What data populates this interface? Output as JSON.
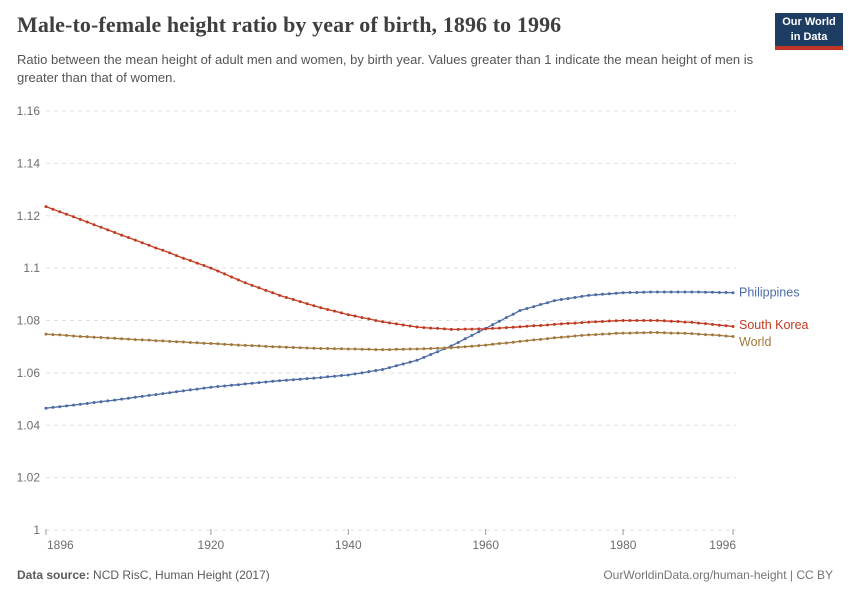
{
  "header": {
    "title": "Male-to-female height ratio by year of birth, 1896 to 1996",
    "subtitle": "Ratio between the mean height of adult men and women, by birth year. Values greater than 1 indicate the mean height of men is greater than that of women.",
    "logo": {
      "line1": "Our World",
      "line2": "in Data",
      "bg_color": "#1d3d63",
      "bar_color": "#c23626"
    }
  },
  "footer": {
    "source_label": "Data source:",
    "source_value": " NCD RisC, Human Height (2017)",
    "link_text": "OurWorldinData.org/human-height | CC BY"
  },
  "chart_data": {
    "type": "line",
    "title": "Male-to-female height ratio by year of birth, 1896 to 1996",
    "xlabel": "",
    "ylabel": "",
    "xlim": [
      1896,
      1996
    ],
    "ylim": [
      1.0,
      1.16
    ],
    "grid": "horizontal-dashed",
    "grid_color": "#e0e0e0",
    "tick_label_color": "#6e6e6e",
    "tick_mark_color": "#999999",
    "legend_position": "right-end-labels",
    "xticks": [
      1896,
      1920,
      1940,
      1960,
      1980,
      1996
    ],
    "yticks": [
      1.0,
      1.02,
      1.04,
      1.06,
      1.08,
      1.1,
      1.12,
      1.14,
      1.16
    ],
    "ytick_labels": [
      "1",
      "1.02",
      "1.04",
      "1.06",
      "1.08",
      "1.1",
      "1.12",
      "1.14",
      "1.16"
    ],
    "x": [
      1896,
      1897,
      1898,
      1899,
      1900,
      1901,
      1902,
      1903,
      1904,
      1905,
      1906,
      1907,
      1908,
      1909,
      1910,
      1911,
      1912,
      1913,
      1914,
      1915,
      1916,
      1917,
      1918,
      1919,
      1920,
      1921,
      1922,
      1923,
      1924,
      1925,
      1926,
      1927,
      1928,
      1929,
      1930,
      1931,
      1932,
      1933,
      1934,
      1935,
      1936,
      1937,
      1938,
      1939,
      1940,
      1941,
      1942,
      1943,
      1944,
      1945,
      1946,
      1947,
      1948,
      1949,
      1950,
      1951,
      1952,
      1953,
      1954,
      1955,
      1956,
      1957,
      1958,
      1959,
      1960,
      1961,
      1962,
      1963,
      1964,
      1965,
      1966,
      1967,
      1968,
      1969,
      1970,
      1971,
      1972,
      1973,
      1974,
      1975,
      1976,
      1977,
      1978,
      1979,
      1980,
      1981,
      1982,
      1983,
      1984,
      1985,
      1986,
      1987,
      1988,
      1989,
      1990,
      1991,
      1992,
      1993,
      1994,
      1995,
      1996
    ],
    "series": [
      {
        "name": "Philippines",
        "color": "#4c6ca4",
        "label_dy": 4,
        "values": [
          1.0465,
          1.0468,
          1.0471,
          1.0474,
          1.0477,
          1.048,
          1.0483,
          1.0487,
          1.049,
          1.0493,
          1.0496,
          1.05,
          1.0503,
          1.0507,
          1.051,
          1.0514,
          1.0517,
          1.0521,
          1.0524,
          1.0528,
          1.0531,
          1.0535,
          1.0538,
          1.0542,
          1.0545,
          1.0548,
          1.055,
          1.0553,
          1.0555,
          1.0558,
          1.056,
          1.0563,
          1.0565,
          1.0568,
          1.057,
          1.0572,
          1.0574,
          1.0576,
          1.0578,
          1.058,
          1.0582,
          1.0585,
          1.0587,
          1.059,
          1.0592,
          1.0596,
          1.06,
          1.0605,
          1.0609,
          1.0613,
          1.062,
          1.0627,
          1.0634,
          1.0641,
          1.0648,
          1.0659,
          1.067,
          1.0681,
          1.0692,
          1.0703,
          1.0716,
          1.073,
          1.0743,
          1.0757,
          1.077,
          1.0784,
          1.0797,
          1.0811,
          1.0824,
          1.0838,
          1.0846,
          1.0853,
          1.0861,
          1.0868,
          1.0876,
          1.088,
          1.0884,
          1.0888,
          1.0892,
          1.0896,
          1.0898,
          1.09,
          1.0902,
          1.0904,
          1.0906,
          1.0907,
          1.0907,
          1.0908,
          1.0909,
          1.0909,
          1.0909,
          1.0909,
          1.0909,
          1.0909,
          1.0909,
          1.0909,
          1.0908,
          1.0908,
          1.0907,
          1.0907,
          1.0906
        ]
      },
      {
        "name": "South Korea",
        "color": "#c13b22",
        "label_dy": 2.5,
        "values": [
          1.1235,
          1.1225,
          1.1215,
          1.1206,
          1.1196,
          1.1186,
          1.1176,
          1.1166,
          1.1156,
          1.1146,
          1.1136,
          1.1126,
          1.1117,
          1.1107,
          1.1097,
          1.1087,
          1.1077,
          1.1068,
          1.1058,
          1.1048,
          1.1038,
          1.1029,
          1.1019,
          1.101,
          1.1,
          1.0989,
          1.0978,
          1.0966,
          1.0955,
          1.0944,
          1.0934,
          1.0925,
          1.0915,
          1.0906,
          1.0896,
          1.0888,
          1.088,
          1.0872,
          1.0864,
          1.0856,
          1.0849,
          1.0842,
          1.0836,
          1.0829,
          1.0822,
          1.0817,
          1.0811,
          1.0806,
          1.08,
          1.0795,
          1.0791,
          1.0787,
          1.0783,
          1.0779,
          1.0775,
          1.0773,
          1.0771,
          1.077,
          1.0768,
          1.0766,
          1.0766,
          1.0767,
          1.0767,
          1.0768,
          1.0768,
          1.077,
          1.0771,
          1.0773,
          1.0774,
          1.0776,
          1.0778,
          1.078,
          1.0781,
          1.0783,
          1.0785,
          1.0787,
          1.0789,
          1.079,
          1.0792,
          1.0794,
          1.0795,
          1.0796,
          1.0798,
          1.0799,
          1.08,
          1.08,
          1.08,
          1.08,
          1.08,
          1.08,
          1.0799,
          1.0797,
          1.0796,
          1.0794,
          1.0793,
          1.079,
          1.0788,
          1.0785,
          1.0782,
          1.078,
          1.0777
        ]
      },
      {
        "name": "World",
        "color": "#a2793c",
        "label_dy": 9.5,
        "values": [
          1.0748,
          1.0746,
          1.0745,
          1.0743,
          1.0741,
          1.0739,
          1.0738,
          1.0736,
          1.0735,
          1.0733,
          1.0732,
          1.073,
          1.0729,
          1.0727,
          1.0726,
          1.0725,
          1.0723,
          1.0722,
          1.072,
          1.0719,
          1.0718,
          1.0716,
          1.0715,
          1.0713,
          1.0712,
          1.0711,
          1.0709,
          1.0708,
          1.0706,
          1.0705,
          1.0704,
          1.0703,
          1.0701,
          1.07,
          1.0699,
          1.0698,
          1.0697,
          1.0696,
          1.0695,
          1.0694,
          1.0693,
          1.0693,
          1.0692,
          1.0692,
          1.0691,
          1.0691,
          1.069,
          1.069,
          1.0689,
          1.0689,
          1.0689,
          1.069,
          1.069,
          1.0691,
          1.0691,
          1.0692,
          1.0693,
          1.0694,
          1.0695,
          1.0696,
          1.0698,
          1.07,
          1.0702,
          1.0704,
          1.0706,
          1.0709,
          1.0712,
          1.0714,
          1.0717,
          1.072,
          1.0723,
          1.0726,
          1.0728,
          1.0731,
          1.0734,
          1.0736,
          1.0738,
          1.0741,
          1.0743,
          1.0745,
          1.0746,
          1.0748,
          1.0749,
          1.0751,
          1.0752,
          1.0752,
          1.0753,
          1.0753,
          1.0754,
          1.0754,
          1.0753,
          1.0752,
          1.0752,
          1.0751,
          1.075,
          1.0748,
          1.0746,
          1.0745,
          1.0743,
          1.0741,
          1.0739
        ]
      }
    ]
  }
}
